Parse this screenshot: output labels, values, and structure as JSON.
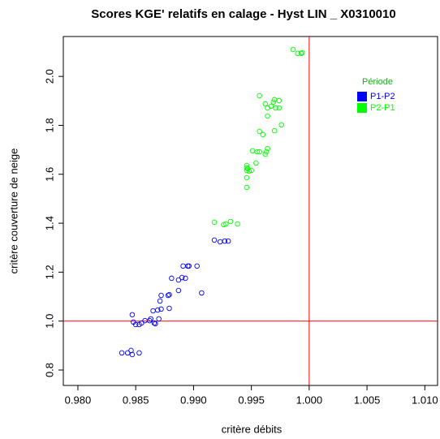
{
  "chart_data": {
    "type": "scatter",
    "title": "Scores KGE' relatifs en calage -  Hyst LIN _ X0310010",
    "x_label": "critère débits",
    "y_label": "critère couverture de neige",
    "legend_title": "Période",
    "legend_position": "top-right",
    "reference_lines": {
      "x": 1.0,
      "y": 1.0,
      "color": "#ff0000"
    },
    "xlim": [
      0.97874,
      1.0111
    ],
    "ylim": [
      0.737,
      2.163
    ],
    "xticks": [
      {
        "value": 0.98,
        "label": "0.980"
      },
      {
        "value": 0.985,
        "label": "0.985"
      },
      {
        "value": 0.99,
        "label": "0.990"
      },
      {
        "value": 0.995,
        "label": "0.995"
      },
      {
        "value": 1.0,
        "label": "1.000"
      },
      {
        "value": 1.005,
        "label": "1.005"
      },
      {
        "value": 1.01,
        "label": "1.010"
      }
    ],
    "yticks": [
      0.8,
      {
        "value": 1.0,
        "label": "1.0"
      },
      1.2,
      1.4,
      1.6,
      1.8,
      {
        "value": 2.0,
        "label": "2.0"
      }
    ],
    "series": [
      {
        "name": "P1-P2",
        "color": "#0000ff",
        "x": [
          0.9838,
          0.9843,
          0.9847,
          0.9853,
          0.9846,
          0.9848,
          0.9847,
          0.985,
          0.9853,
          0.9855,
          0.9858,
          0.9862,
          0.9863,
          0.9866,
          0.9867,
          0.987,
          0.9865,
          0.9869,
          0.9872,
          0.9871,
          0.9872,
          0.9878,
          0.9879,
          0.9879,
          0.9881,
          0.9887,
          0.9887,
          0.989,
          0.9891,
          0.9893,
          0.9895,
          0.9896,
          0.9903,
          0.9907,
          0.9918,
          0.9923,
          0.9927,
          0.993
        ],
        "values": [
          0.87,
          0.87,
          0.863,
          0.87,
          0.88,
          0.996,
          1.026,
          0.986,
          0.986,
          0.992,
          1.002,
          1.002,
          1.009,
          0.992,
          0.989,
          1.009,
          1.042,
          1.045,
          1.049,
          1.082,
          1.105,
          1.105,
          1.052,
          1.108,
          1.175,
          1.168,
          1.125,
          1.178,
          1.225,
          1.175,
          1.225,
          1.225,
          1.225,
          1.115,
          1.331,
          1.324,
          1.327,
          1.327
        ]
      },
      {
        "name": "P2-P1",
        "color": "#00ff00",
        "x": [
          0.9918,
          0.9926,
          0.9928,
          0.9932,
          0.9938,
          0.9946,
          0.9946,
          0.9946,
          0.9946,
          0.9946,
          0.9947,
          0.9948,
          0.995,
          0.9951,
          0.9954,
          0.9955,
          0.9957,
          0.9963,
          0.9964,
          0.9962,
          0.9957,
          0.996,
          0.9957,
          0.9962,
          0.9964,
          0.9964,
          0.9967,
          0.9969,
          0.997,
          0.9971,
          0.9974,
          0.9976,
          0.997,
          0.9974,
          0.9986,
          0.999,
          0.9994,
          0.9993
        ],
        "values": [
          1.404,
          1.394,
          1.397,
          1.407,
          1.397,
          1.546,
          1.586,
          1.626,
          1.636,
          1.616,
          1.623,
          1.613,
          1.616,
          1.696,
          1.646,
          1.692,
          1.692,
          1.692,
          1.705,
          1.682,
          1.775,
          1.762,
          1.921,
          1.888,
          1.838,
          1.871,
          1.878,
          1.895,
          1.905,
          1.871,
          1.871,
          1.802,
          1.778,
          1.901,
          2.11,
          2.094,
          2.097,
          2.094
        ]
      }
    ]
  }
}
